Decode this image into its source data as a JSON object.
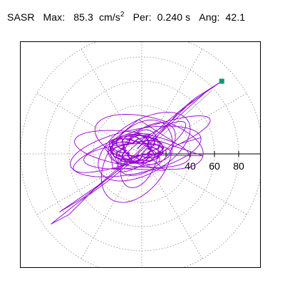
{
  "header": {
    "station": "SASR",
    "max_label": "Max:",
    "max_value": "85.3",
    "max_unit": "cm/s",
    "max_exp": "2",
    "per_label": "Per:",
    "per_value": "0.240 s",
    "ang_label": "Ang:",
    "ang_value": "42.1"
  },
  "colors": {
    "trace": "#9400d3",
    "marker": "#009a73",
    "grid": "#8a8a8a"
  },
  "chart_data": {
    "type": "polar-orbit",
    "title": "SASR",
    "radial_ticks": [
      20,
      40,
      60,
      80
    ],
    "tick_labels": [
      "40",
      "60",
      "80"
    ],
    "rmax": 100,
    "ring_count": 5,
    "radial_line_count": 12,
    "grid": true,
    "peak_value": 85.3,
    "peak_angle_deg": 42.1,
    "peak_marker_position": [
      66,
      60
    ],
    "trace_series": [
      {
        "cx": 0,
        "cy": 0,
        "loops": [
          {
            "a": 55,
            "b": 18,
            "rot": 12,
            "turns": 1,
            "x0": -5,
            "y0": 2
          },
          {
            "a": 48,
            "b": 14,
            "rot": -8,
            "turns": 1,
            "x0": -8,
            "y0": 4
          },
          {
            "a": 42,
            "b": 22,
            "rot": 30,
            "turns": 1,
            "x0": 2,
            "y0": 6
          },
          {
            "a": 36,
            "b": 10,
            "rot": 5,
            "turns": 1,
            "x0": -12,
            "y0": -2
          },
          {
            "a": 28,
            "b": 16,
            "rot": 40,
            "turns": 1,
            "x0": 4,
            "y0": 4
          },
          {
            "a": 22,
            "b": 8,
            "rot": -20,
            "turns": 1,
            "x0": -6,
            "y0": 2
          },
          {
            "a": 60,
            "b": 12,
            "rot": 20,
            "turns": 1,
            "x0": 0,
            "y0": 8
          },
          {
            "a": 38,
            "b": 24,
            "rot": 55,
            "turns": 1,
            "x0": -4,
            "y0": -6
          },
          {
            "a": 18,
            "b": 12,
            "rot": 10,
            "turns": 1,
            "x0": -10,
            "y0": 4
          },
          {
            "a": 46,
            "b": 20,
            "rot": -15,
            "turns": 1,
            "x0": 6,
            "y0": 10
          },
          {
            "a": 25,
            "b": 14,
            "rot": 70,
            "turns": 1,
            "x0": -2,
            "y0": -4
          },
          {
            "a": 34,
            "b": 9,
            "rot": 35,
            "turns": 1,
            "x0": 8,
            "y0": 6
          }
        ],
        "spike_points": [
          [
            -4,
            4
          ],
          [
            20,
            26
          ],
          [
            44,
            46
          ],
          [
            66,
            60
          ],
          [
            40,
            42
          ],
          [
            10,
            14
          ],
          [
            -20,
            -14
          ],
          [
            -40,
            -30
          ],
          [
            -60,
            -50
          ],
          [
            -75,
            -58
          ],
          [
            -55,
            -42
          ],
          [
            -30,
            -24
          ],
          [
            0,
            0
          ],
          [
            30,
            34
          ],
          [
            54,
            52
          ],
          [
            36,
            36
          ],
          [
            -10,
            -6
          ],
          [
            -48,
            -36
          ],
          [
            -68,
            -48
          ],
          [
            -36,
            -26
          ],
          [
            -8,
            -2
          ]
        ]
      }
    ]
  }
}
